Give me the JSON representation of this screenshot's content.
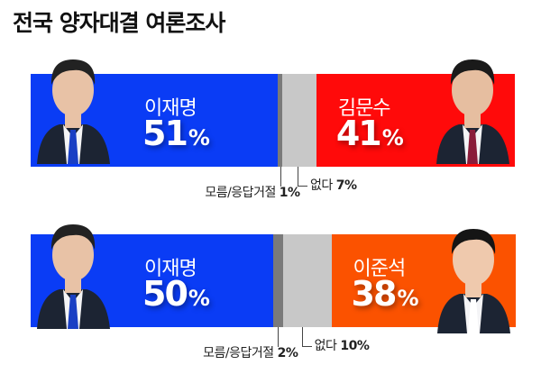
{
  "title": "전국 양자대결 여론조사",
  "chart_data": [
    {
      "type": "bar",
      "orientation": "horizontal-stacked",
      "categories": [
        "이재명",
        "모름/응답거절",
        "없다",
        "김문수"
      ],
      "values": [
        51,
        1,
        7,
        41
      ],
      "unit": "%",
      "colors": [
        "#0a3cf5",
        "#7a7a7a",
        "#c8c8c8",
        "#ff0a0a"
      ],
      "labels": {
        "left_name": "이재명",
        "left_pct": "51",
        "right_name": "김문수",
        "right_pct": "41",
        "dk_label": "모름/응답거절",
        "dk_pct": "1%",
        "none_label": "없다",
        "none_pct": "7%"
      }
    },
    {
      "type": "bar",
      "orientation": "horizontal-stacked",
      "categories": [
        "이재명",
        "모름/응답거절",
        "없다",
        "이준석"
      ],
      "values": [
        50,
        2,
        10,
        38
      ],
      "unit": "%",
      "colors": [
        "#0a3cf5",
        "#7a7a7a",
        "#c8c8c8",
        "#fb5200"
      ],
      "labels": {
        "left_name": "이재명",
        "left_pct": "50",
        "right_name": "이준석",
        "right_pct": "38",
        "dk_label": "모름/응답거절",
        "dk_pct": "2%",
        "none_label": "없다",
        "none_pct": "10%"
      }
    }
  ],
  "percent_sign": "%"
}
